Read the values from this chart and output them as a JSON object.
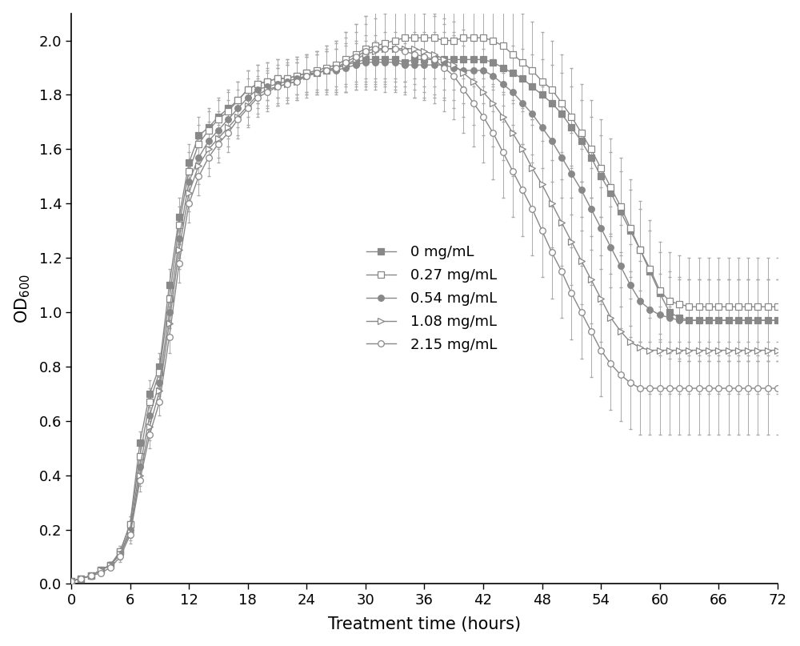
{
  "xlabel": "Treatment time (hours)",
  "ylabel": "OD$_{600}$",
  "xlim": [
    0,
    72
  ],
  "ylim": [
    0.0,
    2.1
  ],
  "xticks": [
    0,
    6,
    12,
    18,
    24,
    30,
    36,
    42,
    48,
    54,
    60,
    66,
    72
  ],
  "yticks": [
    0.0,
    0.2,
    0.4,
    0.6,
    0.8,
    1.0,
    1.2,
    1.4,
    1.6,
    1.8,
    2.0
  ],
  "legend_labels": [
    "0 mg/mL",
    "0.27 mg/mL",
    "0.54 mg/mL",
    "1.08 mg/mL",
    "2.15 mg/mL"
  ],
  "background_color": "#ffffff",
  "line_color": "#888888",
  "series": {
    "c0": {
      "x": [
        0,
        1,
        2,
        3,
        4,
        5,
        6,
        7,
        8,
        9,
        10,
        11,
        12,
        13,
        14,
        15,
        16,
        17,
        18,
        19,
        20,
        21,
        22,
        23,
        24,
        25,
        26,
        27,
        28,
        29,
        30,
        31,
        32,
        33,
        34,
        35,
        36,
        37,
        38,
        39,
        40,
        41,
        42,
        43,
        44,
        45,
        46,
        47,
        48,
        49,
        50,
        51,
        52,
        53,
        54,
        55,
        56,
        57,
        58,
        59,
        60,
        61,
        62,
        63,
        64,
        65,
        66,
        67,
        68,
        69,
        70,
        71,
        72
      ],
      "y": [
        0.01,
        0.02,
        0.03,
        0.05,
        0.07,
        0.12,
        0.22,
        0.52,
        0.7,
        0.8,
        1.1,
        1.35,
        1.55,
        1.65,
        1.68,
        1.72,
        1.75,
        1.78,
        1.82,
        1.84,
        1.85,
        1.86,
        1.86,
        1.87,
        1.88,
        1.88,
        1.89,
        1.9,
        1.91,
        1.92,
        1.93,
        1.93,
        1.93,
        1.93,
        1.92,
        1.93,
        1.93,
        1.93,
        1.93,
        1.93,
        1.93,
        1.93,
        1.93,
        1.92,
        1.9,
        1.88,
        1.86,
        1.83,
        1.8,
        1.77,
        1.73,
        1.68,
        1.63,
        1.57,
        1.5,
        1.44,
        1.37,
        1.3,
        1.23,
        1.15,
        1.07,
        1.0,
        0.98,
        0.97,
        0.97,
        0.97,
        0.97,
        0.97,
        0.97,
        0.97,
        0.97,
        0.97,
        0.97
      ],
      "yerr": [
        0.005,
        0.005,
        0.01,
        0.01,
        0.01,
        0.02,
        0.03,
        0.04,
        0.05,
        0.05,
        0.06,
        0.07,
        0.07,
        0.07,
        0.07,
        0.07,
        0.07,
        0.07,
        0.07,
        0.07,
        0.07,
        0.07,
        0.07,
        0.07,
        0.07,
        0.07,
        0.07,
        0.07,
        0.07,
        0.07,
        0.07,
        0.07,
        0.07,
        0.07,
        0.07,
        0.07,
        0.07,
        0.07,
        0.07,
        0.07,
        0.07,
        0.07,
        0.07,
        0.08,
        0.09,
        0.1,
        0.11,
        0.12,
        0.13,
        0.14,
        0.15,
        0.15,
        0.15,
        0.15,
        0.15,
        0.15,
        0.15,
        0.15,
        0.15,
        0.15,
        0.15,
        0.15,
        0.15,
        0.15,
        0.15,
        0.15,
        0.15,
        0.15,
        0.15,
        0.15,
        0.15,
        0.15,
        0.15
      ],
      "marker": "s",
      "filled": true
    },
    "c027": {
      "x": [
        0,
        1,
        2,
        3,
        4,
        5,
        6,
        7,
        8,
        9,
        10,
        11,
        12,
        13,
        14,
        15,
        16,
        17,
        18,
        19,
        20,
        21,
        22,
        23,
        24,
        25,
        26,
        27,
        28,
        29,
        30,
        31,
        32,
        33,
        34,
        35,
        36,
        37,
        38,
        39,
        40,
        41,
        42,
        43,
        44,
        45,
        46,
        47,
        48,
        49,
        50,
        51,
        52,
        53,
        54,
        55,
        56,
        57,
        58,
        59,
        60,
        61,
        62,
        63,
        64,
        65,
        66,
        67,
        68,
        69,
        70,
        71,
        72
      ],
      "y": [
        0.01,
        0.02,
        0.03,
        0.05,
        0.07,
        0.12,
        0.22,
        0.47,
        0.67,
        0.78,
        1.05,
        1.32,
        1.52,
        1.62,
        1.67,
        1.71,
        1.74,
        1.78,
        1.82,
        1.84,
        1.85,
        1.86,
        1.86,
        1.87,
        1.88,
        1.89,
        1.9,
        1.91,
        1.93,
        1.95,
        1.97,
        1.98,
        1.99,
        2.0,
        2.01,
        2.01,
        2.01,
        2.01,
        2.0,
        2.0,
        2.01,
        2.01,
        2.01,
        2.0,
        1.98,
        1.95,
        1.92,
        1.89,
        1.85,
        1.82,
        1.77,
        1.72,
        1.66,
        1.6,
        1.53,
        1.46,
        1.39,
        1.31,
        1.23,
        1.16,
        1.08,
        1.04,
        1.03,
        1.02,
        1.02,
        1.02,
        1.02,
        1.02,
        1.02,
        1.02,
        1.02,
        1.02,
        1.02
      ],
      "yerr": [
        0.005,
        0.005,
        0.01,
        0.01,
        0.01,
        0.02,
        0.03,
        0.04,
        0.05,
        0.05,
        0.06,
        0.07,
        0.07,
        0.07,
        0.07,
        0.07,
        0.07,
        0.07,
        0.07,
        0.07,
        0.07,
        0.07,
        0.07,
        0.07,
        0.07,
        0.07,
        0.08,
        0.09,
        0.1,
        0.11,
        0.12,
        0.13,
        0.14,
        0.15,
        0.16,
        0.17,
        0.18,
        0.18,
        0.18,
        0.18,
        0.18,
        0.18,
        0.18,
        0.18,
        0.18,
        0.18,
        0.18,
        0.18,
        0.18,
        0.18,
        0.18,
        0.18,
        0.18,
        0.18,
        0.18,
        0.18,
        0.18,
        0.18,
        0.18,
        0.18,
        0.18,
        0.18,
        0.18,
        0.18,
        0.18,
        0.18,
        0.18,
        0.18,
        0.18,
        0.18,
        0.18,
        0.18,
        0.18
      ],
      "marker": "s",
      "filled": false
    },
    "c054": {
      "x": [
        0,
        1,
        2,
        3,
        4,
        5,
        6,
        7,
        8,
        9,
        10,
        11,
        12,
        13,
        14,
        15,
        16,
        17,
        18,
        19,
        20,
        21,
        22,
        23,
        24,
        25,
        26,
        27,
        28,
        29,
        30,
        31,
        32,
        33,
        34,
        35,
        36,
        37,
        38,
        39,
        40,
        41,
        42,
        43,
        44,
        45,
        46,
        47,
        48,
        49,
        50,
        51,
        52,
        53,
        54,
        55,
        56,
        57,
        58,
        59,
        60,
        61,
        62,
        63,
        64,
        65,
        66,
        67,
        68,
        69,
        70,
        71,
        72
      ],
      "y": [
        0.01,
        0.02,
        0.03,
        0.05,
        0.07,
        0.11,
        0.2,
        0.43,
        0.62,
        0.74,
        1.0,
        1.27,
        1.48,
        1.57,
        1.63,
        1.67,
        1.71,
        1.75,
        1.79,
        1.82,
        1.83,
        1.84,
        1.85,
        1.86,
        1.87,
        1.88,
        1.89,
        1.89,
        1.9,
        1.91,
        1.92,
        1.92,
        1.92,
        1.92,
        1.91,
        1.91,
        1.91,
        1.91,
        1.91,
        1.9,
        1.89,
        1.89,
        1.89,
        1.87,
        1.84,
        1.81,
        1.77,
        1.73,
        1.68,
        1.63,
        1.57,
        1.51,
        1.45,
        1.38,
        1.31,
        1.24,
        1.17,
        1.1,
        1.04,
        1.01,
        0.99,
        0.98,
        0.97,
        0.97,
        0.97,
        0.97,
        0.97,
        0.97,
        0.97,
        0.97,
        0.97,
        0.97,
        0.97
      ],
      "yerr": [
        0.005,
        0.005,
        0.01,
        0.01,
        0.01,
        0.02,
        0.03,
        0.04,
        0.05,
        0.05,
        0.06,
        0.07,
        0.07,
        0.07,
        0.07,
        0.07,
        0.07,
        0.07,
        0.07,
        0.07,
        0.07,
        0.07,
        0.07,
        0.07,
        0.07,
        0.07,
        0.07,
        0.08,
        0.09,
        0.09,
        0.1,
        0.1,
        0.11,
        0.11,
        0.11,
        0.12,
        0.12,
        0.12,
        0.12,
        0.12,
        0.12,
        0.12,
        0.12,
        0.13,
        0.14,
        0.14,
        0.15,
        0.15,
        0.15,
        0.15,
        0.15,
        0.15,
        0.15,
        0.15,
        0.15,
        0.15,
        0.15,
        0.15,
        0.15,
        0.15,
        0.15,
        0.15,
        0.15,
        0.15,
        0.15,
        0.15,
        0.15,
        0.15,
        0.15,
        0.15,
        0.15,
        0.15,
        0.15
      ],
      "marker": "o",
      "filled": true
    },
    "c108": {
      "x": [
        0,
        1,
        2,
        3,
        4,
        5,
        6,
        7,
        8,
        9,
        10,
        11,
        12,
        13,
        14,
        15,
        16,
        17,
        18,
        19,
        20,
        21,
        22,
        23,
        24,
        25,
        26,
        27,
        28,
        29,
        30,
        31,
        32,
        33,
        34,
        35,
        36,
        37,
        38,
        39,
        40,
        41,
        42,
        43,
        44,
        45,
        46,
        47,
        48,
        49,
        50,
        51,
        52,
        53,
        54,
        55,
        56,
        57,
        58,
        59,
        60,
        61,
        62,
        63,
        64,
        65,
        66,
        67,
        68,
        69,
        70,
        71,
        72
      ],
      "y": [
        0.01,
        0.02,
        0.03,
        0.05,
        0.07,
        0.11,
        0.19,
        0.4,
        0.58,
        0.71,
        0.96,
        1.23,
        1.44,
        1.54,
        1.6,
        1.64,
        1.68,
        1.72,
        1.76,
        1.8,
        1.82,
        1.83,
        1.84,
        1.85,
        1.87,
        1.88,
        1.89,
        1.9,
        1.91,
        1.93,
        1.95,
        1.96,
        1.97,
        1.97,
        1.97,
        1.97,
        1.96,
        1.95,
        1.93,
        1.91,
        1.88,
        1.85,
        1.81,
        1.77,
        1.72,
        1.66,
        1.6,
        1.53,
        1.47,
        1.4,
        1.33,
        1.26,
        1.19,
        1.12,
        1.05,
        0.98,
        0.93,
        0.89,
        0.87,
        0.86,
        0.86,
        0.86,
        0.86,
        0.86,
        0.86,
        0.86,
        0.86,
        0.86,
        0.86,
        0.86,
        0.86,
        0.86,
        0.86
      ],
      "yerr": [
        0.005,
        0.005,
        0.01,
        0.01,
        0.01,
        0.02,
        0.03,
        0.04,
        0.05,
        0.05,
        0.06,
        0.07,
        0.07,
        0.07,
        0.07,
        0.07,
        0.07,
        0.07,
        0.07,
        0.07,
        0.07,
        0.07,
        0.07,
        0.07,
        0.07,
        0.08,
        0.08,
        0.09,
        0.1,
        0.1,
        0.11,
        0.12,
        0.13,
        0.14,
        0.14,
        0.15,
        0.15,
        0.15,
        0.15,
        0.16,
        0.16,
        0.16,
        0.16,
        0.16,
        0.16,
        0.16,
        0.16,
        0.16,
        0.16,
        0.16,
        0.16,
        0.16,
        0.16,
        0.16,
        0.16,
        0.16,
        0.16,
        0.16,
        0.16,
        0.16,
        0.16,
        0.16,
        0.16,
        0.16,
        0.16,
        0.16,
        0.16,
        0.16,
        0.16,
        0.16,
        0.16,
        0.16,
        0.16
      ],
      "marker": ">",
      "filled": false
    },
    "c215": {
      "x": [
        0,
        1,
        2,
        3,
        4,
        5,
        6,
        7,
        8,
        9,
        10,
        11,
        12,
        13,
        14,
        15,
        16,
        17,
        18,
        19,
        20,
        21,
        22,
        23,
        24,
        25,
        26,
        27,
        28,
        29,
        30,
        31,
        32,
        33,
        34,
        35,
        36,
        37,
        38,
        39,
        40,
        41,
        42,
        43,
        44,
        45,
        46,
        47,
        48,
        49,
        50,
        51,
        52,
        53,
        54,
        55,
        56,
        57,
        58,
        59,
        60,
        61,
        62,
        63,
        64,
        65,
        66,
        67,
        68,
        69,
        70,
        71,
        72
      ],
      "y": [
        0.01,
        0.02,
        0.03,
        0.04,
        0.06,
        0.1,
        0.18,
        0.38,
        0.55,
        0.67,
        0.91,
        1.18,
        1.4,
        1.5,
        1.57,
        1.62,
        1.66,
        1.71,
        1.75,
        1.79,
        1.81,
        1.83,
        1.84,
        1.85,
        1.87,
        1.88,
        1.89,
        1.9,
        1.92,
        1.94,
        1.96,
        1.97,
        1.97,
        1.97,
        1.96,
        1.95,
        1.94,
        1.93,
        1.9,
        1.87,
        1.82,
        1.77,
        1.72,
        1.66,
        1.59,
        1.52,
        1.45,
        1.38,
        1.3,
        1.22,
        1.15,
        1.07,
        1.0,
        0.93,
        0.86,
        0.81,
        0.77,
        0.74,
        0.72,
        0.72,
        0.72,
        0.72,
        0.72,
        0.72,
        0.72,
        0.72,
        0.72,
        0.72,
        0.72,
        0.72,
        0.72,
        0.72,
        0.72
      ],
      "yerr": [
        0.005,
        0.005,
        0.01,
        0.01,
        0.01,
        0.02,
        0.03,
        0.04,
        0.05,
        0.05,
        0.06,
        0.07,
        0.07,
        0.07,
        0.07,
        0.07,
        0.07,
        0.07,
        0.07,
        0.07,
        0.07,
        0.07,
        0.07,
        0.07,
        0.08,
        0.08,
        0.09,
        0.1,
        0.11,
        0.12,
        0.13,
        0.14,
        0.14,
        0.15,
        0.15,
        0.16,
        0.16,
        0.16,
        0.16,
        0.16,
        0.16,
        0.16,
        0.17,
        0.17,
        0.17,
        0.17,
        0.17,
        0.17,
        0.17,
        0.17,
        0.17,
        0.17,
        0.17,
        0.17,
        0.17,
        0.17,
        0.17,
        0.17,
        0.17,
        0.17,
        0.17,
        0.17,
        0.17,
        0.17,
        0.17,
        0.17,
        0.17,
        0.17,
        0.17,
        0.17,
        0.17,
        0.17,
        0.17
      ],
      "marker": "o",
      "filled": false
    }
  }
}
